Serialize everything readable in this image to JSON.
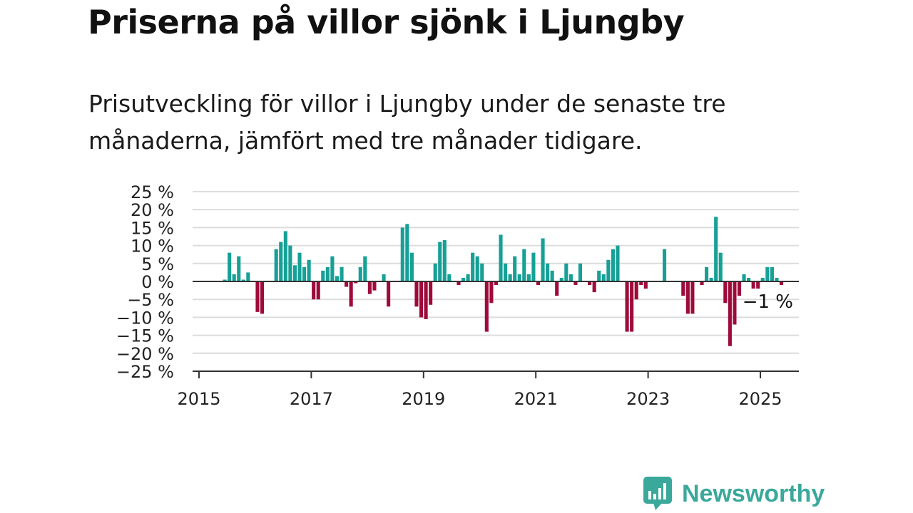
{
  "title": "Priserna på villor sjönk i Ljungby",
  "subtitle": "Prisutveckling för villor i Ljungby under de senaste tre månaderna, jämfört med tre månader tidigare.",
  "brand": {
    "name": "Newsworthy",
    "color": "#3aa89b",
    "icon": "newsworthy-chart-bubble-icon"
  },
  "chart_data": {
    "type": "bar",
    "title": "",
    "xlabel": "",
    "ylabel": "",
    "ylim": [
      -25,
      25
    ],
    "y_ticks": [
      25,
      20,
      15,
      10,
      5,
      0,
      -5,
      -10,
      -15,
      -20,
      -25
    ],
    "y_tick_labels": [
      "25 %",
      "20 %",
      "15 %",
      "10 %",
      "5 %",
      "0 %",
      "−5 %",
      "−10 %",
      "−15 %",
      "−20 %",
      "−25 %"
    ],
    "x_ticks": [
      "2015",
      "2017",
      "2019",
      "2021",
      "2023",
      "2025"
    ],
    "x_tick_years": [
      2015,
      2017,
      2019,
      2021,
      2023,
      2025
    ],
    "grid": true,
    "positive_color": "#16a096",
    "negative_color": "#9e0b3b",
    "last_value_label": "−1 %",
    "series": [
      {
        "start": "2015-06",
        "frequency": "monthly",
        "values": [
          0.5,
          8,
          2,
          7,
          0.5,
          2.5,
          0,
          -8.5,
          -9,
          0,
          0,
          9,
          11,
          14,
          10,
          4.5,
          8,
          4,
          6,
          -5,
          -5,
          3,
          4,
          7,
          1.5,
          4,
          -1.5,
          -7,
          -0.5,
          4,
          7,
          -3.5,
          -2.5,
          0,
          2,
          -7,
          0,
          0,
          15,
          16,
          8,
          -7,
          -10,
          -10.5,
          -6.5,
          5,
          11,
          11.5,
          2,
          0,
          -1,
          1,
          2,
          8,
          7,
          5,
          -14,
          -6,
          -1,
          13,
          5,
          2,
          7,
          2,
          9,
          2,
          8,
          -1,
          12,
          5,
          3,
          -4,
          1,
          5,
          2,
          -1,
          5,
          0,
          -1,
          -3,
          3,
          2,
          6,
          9,
          10,
          0,
          -14,
          -14,
          -5,
          -1,
          -2,
          0,
          0,
          0,
          9,
          0,
          0,
          0,
          -4,
          -9,
          -9,
          0,
          -1,
          4,
          1,
          18,
          8,
          -6,
          -18,
          -12,
          -4,
          2,
          1,
          -2,
          -2,
          1,
          4,
          4,
          1,
          -1
        ]
      }
    ]
  }
}
